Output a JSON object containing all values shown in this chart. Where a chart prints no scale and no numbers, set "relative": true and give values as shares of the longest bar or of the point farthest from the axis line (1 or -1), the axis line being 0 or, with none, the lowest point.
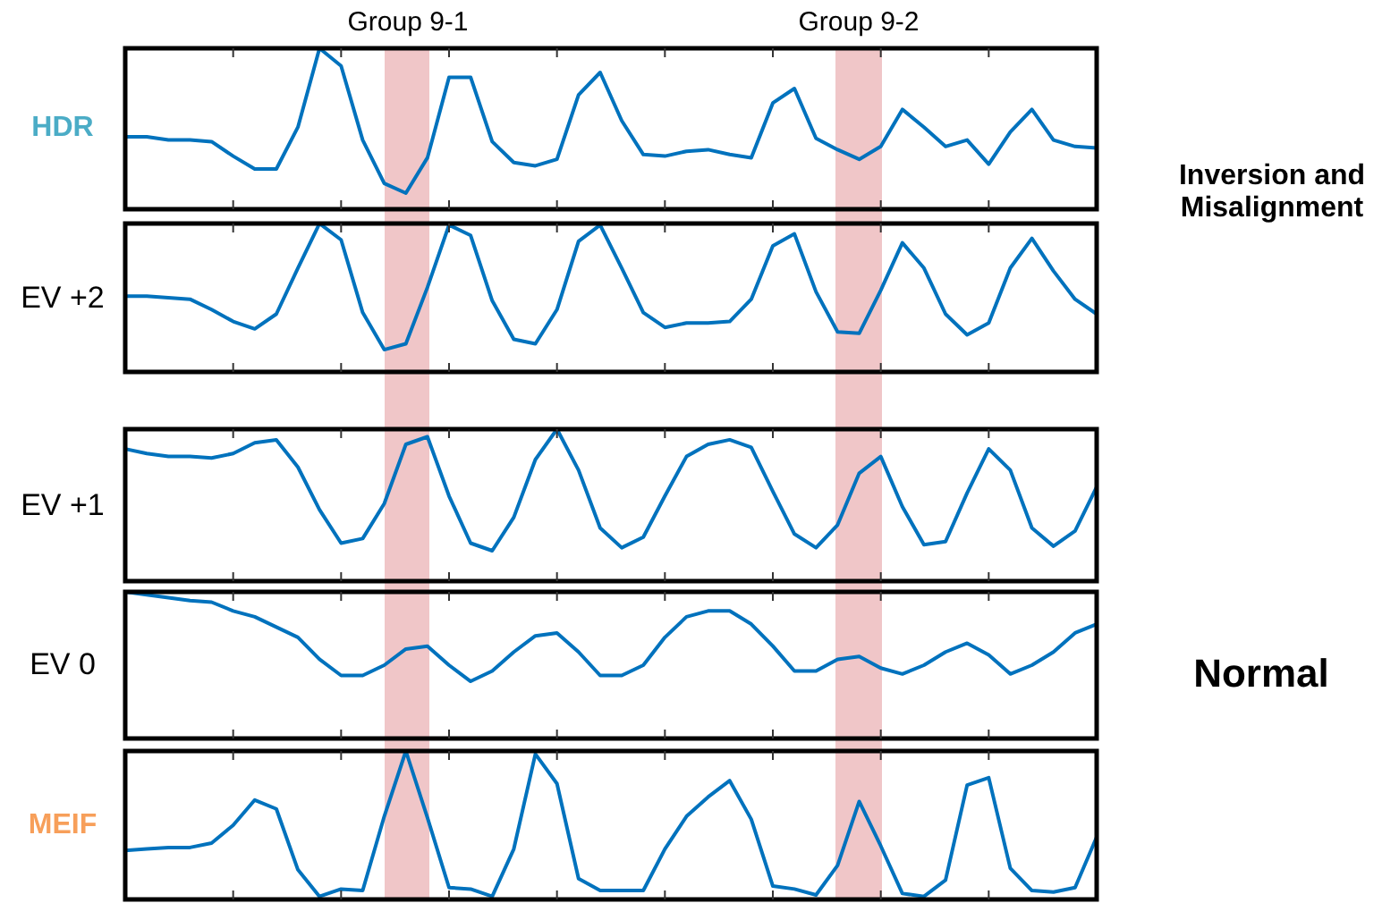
{
  "chart_data": [
    {
      "type": "line",
      "ylabel": "HDR",
      "relative": true,
      "color": "#0072bd",
      "categories": [
        null,
        null,
        null,
        null,
        null,
        null,
        null,
        null,
        null,
        null,
        null,
        null,
        null,
        null,
        null,
        null,
        null,
        null,
        null,
        null,
        null,
        null,
        null,
        null,
        null,
        null,
        null,
        null,
        null,
        null,
        null,
        null,
        null,
        null,
        null,
        null,
        null,
        null,
        null,
        null,
        null,
        null,
        null,
        null,
        null,
        null
      ],
      "values": [
        0.45,
        0.45,
        0.43,
        0.43,
        0.42,
        0.33,
        0.25,
        0.25,
        0.51,
        1,
        0.89,
        0.43,
        0.16,
        0.1,
        0.32,
        0.82,
        0.82,
        0.42,
        0.29,
        0.27,
        0.31,
        0.71,
        0.85,
        0.55,
        0.34,
        0.33,
        0.36,
        0.37,
        0.34,
        0.32,
        0.66,
        0.75,
        0.44,
        0.37,
        0.31,
        0.39,
        0.62,
        0.51,
        0.39,
        0.43,
        0.28,
        0.48,
        0.62,
        0.43,
        0.39,
        0.38
      ],
      "annotations": [
        "Group 9-1",
        "Group 9-2",
        "Inversion and Misalignment"
      ]
    },
    {
      "type": "line",
      "ylabel": "EV +2",
      "relative": true,
      "color": "#0072bd",
      "categories": [
        null,
        null,
        null,
        null,
        null,
        null,
        null,
        null,
        null,
        null,
        null,
        null,
        null,
        null,
        null,
        null,
        null,
        null,
        null,
        null,
        null,
        null,
        null,
        null,
        null,
        null,
        null,
        null,
        null,
        null,
        null,
        null,
        null,
        null,
        null,
        null,
        null,
        null,
        null,
        null,
        null,
        null,
        null,
        null,
        null,
        null
      ],
      "values": [
        0.51,
        0.51,
        0.5,
        0.49,
        0.42,
        0.34,
        0.29,
        0.39,
        0.7,
        1,
        0.89,
        0.4,
        0.15,
        0.19,
        0.57,
        0.99,
        0.92,
        0.48,
        0.22,
        0.19,
        0.42,
        0.88,
        0.99,
        0.7,
        0.4,
        0.3,
        0.33,
        0.33,
        0.34,
        0.49,
        0.85,
        0.93,
        0.54,
        0.27,
        0.26,
        0.55,
        0.87,
        0.7,
        0.39,
        0.25,
        0.33,
        0.7,
        0.9,
        0.68,
        0.49,
        0.39
      ]
    },
    {
      "type": "line",
      "ylabel": "EV +1",
      "relative": true,
      "color": "#0072bd",
      "categories": [
        null,
        null,
        null,
        null,
        null,
        null,
        null,
        null,
        null,
        null,
        null,
        null,
        null,
        null,
        null,
        null,
        null,
        null,
        null,
        null,
        null,
        null,
        null,
        null,
        null,
        null,
        null,
        null,
        null,
        null,
        null,
        null,
        null,
        null,
        null,
        null,
        null,
        null,
        null,
        null,
        null,
        null,
        null,
        null,
        null,
        null
      ],
      "values": [
        0.87,
        0.84,
        0.82,
        0.82,
        0.81,
        0.84,
        0.91,
        0.93,
        0.75,
        0.47,
        0.25,
        0.28,
        0.51,
        0.9,
        0.95,
        0.56,
        0.25,
        0.2,
        0.42,
        0.8,
        1,
        0.73,
        0.35,
        0.22,
        0.29,
        0.56,
        0.82,
        0.9,
        0.93,
        0.88,
        0.59,
        0.31,
        0.22,
        0.37,
        0.71,
        0.82,
        0.49,
        0.24,
        0.26,
        0.58,
        0.87,
        0.73,
        0.35,
        0.23,
        0.33,
        0.62
      ]
    },
    {
      "type": "line",
      "ylabel": "EV 0",
      "relative": true,
      "color": "#0072bd",
      "categories": [
        null,
        null,
        null,
        null,
        null,
        null,
        null,
        null,
        null,
        null,
        null,
        null,
        null,
        null,
        null,
        null,
        null,
        null,
        null,
        null,
        null,
        null,
        null,
        null,
        null,
        null,
        null,
        null,
        null,
        null,
        null,
        null,
        null,
        null,
        null,
        null,
        null,
        null,
        null,
        null,
        null,
        null,
        null,
        null,
        null,
        null
      ],
      "values": [
        1,
        0.98,
        0.96,
        0.94,
        0.93,
        0.87,
        0.83,
        0.76,
        0.69,
        0.54,
        0.43,
        0.43,
        0.5,
        0.61,
        0.63,
        0.5,
        0.39,
        0.46,
        0.59,
        0.7,
        0.72,
        0.59,
        0.43,
        0.43,
        0.5,
        0.69,
        0.83,
        0.87,
        0.87,
        0.78,
        0.63,
        0.46,
        0.46,
        0.54,
        0.56,
        0.48,
        0.44,
        0.5,
        0.59,
        0.65,
        0.57,
        0.44,
        0.5,
        0.59,
        0.72,
        0.78
      ],
      "annotations": [
        "Normal"
      ]
    },
    {
      "type": "line",
      "ylabel": "MEIF",
      "relative": true,
      "color": "#0072bd",
      "categories": [
        null,
        null,
        null,
        null,
        null,
        null,
        null,
        null,
        null,
        null,
        null,
        null,
        null,
        null,
        null,
        null,
        null,
        null,
        null,
        null,
        null,
        null,
        null,
        null,
        null,
        null,
        null,
        null,
        null,
        null,
        null,
        null,
        null,
        null,
        null,
        null,
        null,
        null,
        null,
        null,
        null,
        null,
        null,
        null,
        null,
        null
      ],
      "values": [
        0.33,
        0.34,
        0.35,
        0.35,
        0.38,
        0.5,
        0.67,
        0.61,
        0.2,
        0.02,
        0.07,
        0.06,
        0.56,
        1,
        0.55,
        0.08,
        0.07,
        0.02,
        0.34,
        0.98,
        0.78,
        0.14,
        0.06,
        0.06,
        0.06,
        0.34,
        0.56,
        0.69,
        0.8,
        0.54,
        0.09,
        0.07,
        0.03,
        0.23,
        0.66,
        0.36,
        0.04,
        0.02,
        0.13,
        0.77,
        0.82,
        0.21,
        0.06,
        0.05,
        0.08,
        0.42
      ]
    }
  ]
}
